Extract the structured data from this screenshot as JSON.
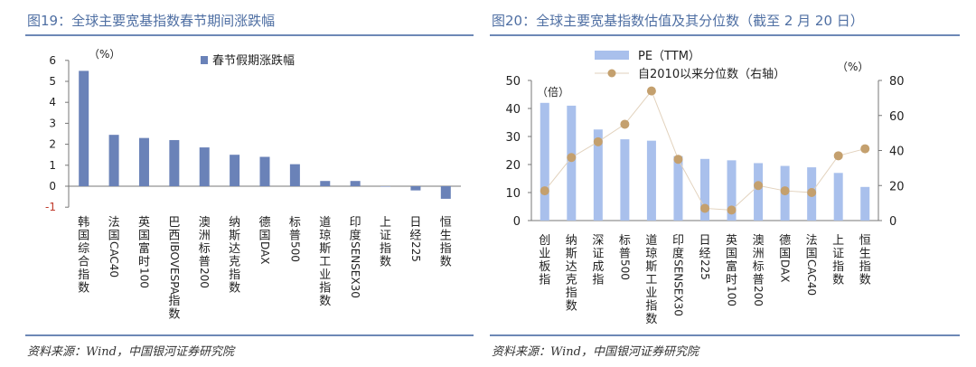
{
  "colors": {
    "title": "#4f6fa3",
    "rule": "#6d88b6",
    "bar_dark": "#6a82b8",
    "bar_light": "#a9c0ec",
    "dot": "#c4a06e",
    "negative_tick": "#c0392b"
  },
  "left": {
    "title": "图19：全球主要宽基指数春节期间涨跌幅",
    "source": "资料来源：Wind，中国银河证券研究院"
  },
  "right": {
    "title": "图20：全球主要宽基指数估值及其分位数（截至 2 月 20 日）",
    "source": "资料来源：Wind，中国银河证券研究院"
  },
  "chart_data": [
    {
      "type": "bar",
      "unit_label": "（%）",
      "categories": [
        "韩国综合指数",
        "法国CAC40",
        "英国富时100",
        "巴西IBOVESPA指数",
        "澳洲标普200",
        "纳斯达克指数",
        "德国DAX",
        "标普500",
        "道琼斯工业指数",
        "印度SENSEX30",
        "上证指数",
        "日经225",
        "恒生指数"
      ],
      "series": [
        {
          "name": "春节假期涨跌幅",
          "values": [
            5.5,
            2.45,
            2.3,
            2.2,
            1.85,
            1.5,
            1.4,
            1.05,
            0.25,
            0.25,
            0.0,
            -0.2,
            -0.6
          ]
        }
      ],
      "yticks": [
        "6",
        "5",
        "4",
        "3",
        "2",
        "1",
        "0",
        "-1"
      ],
      "ylim": [
        -1,
        6
      ],
      "grid": false,
      "legend": "top-right"
    },
    {
      "type": "bar",
      "unit_left": "（倍）",
      "unit_right": "（%）",
      "categories": [
        "创业板指",
        "纳斯达克指数",
        "深证成指",
        "标普500",
        "道琼斯工业指数",
        "印度SENSEX30",
        "日经225",
        "英国富时100",
        "澳洲标普200",
        "德国DAX",
        "法国CAC40",
        "上证指数",
        "恒生指数"
      ],
      "series": [
        {
          "name": "PE（TTM）",
          "type": "bar",
          "axis": "left",
          "values": [
            42.0,
            41.0,
            32.5,
            29.0,
            28.5,
            23.0,
            22.0,
            21.5,
            20.5,
            19.5,
            19.0,
            17.0,
            12.0
          ]
        },
        {
          "name": "自2010以来分位数（右轴）",
          "type": "scatter",
          "axis": "right",
          "values": [
            17,
            36,
            45,
            55,
            74,
            35,
            7,
            6,
            20,
            17,
            16,
            37,
            41
          ]
        }
      ],
      "yticks_left": [
        "50",
        "40",
        "30",
        "20",
        "10",
        "0"
      ],
      "yticks_right": [
        "80",
        "60",
        "40",
        "20",
        "0"
      ],
      "ylim_left": [
        0,
        50
      ],
      "ylim_right": [
        0,
        80
      ],
      "grid": false,
      "legend": "top-center"
    }
  ]
}
